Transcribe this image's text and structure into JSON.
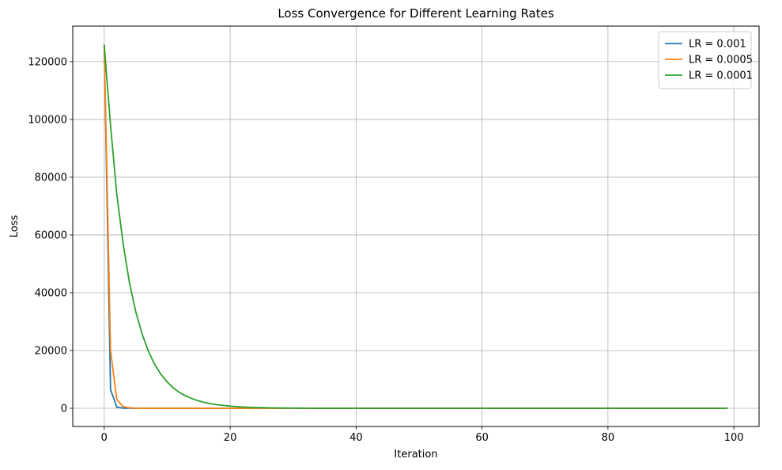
{
  "chart_data": {
    "type": "line",
    "title": "Loss Convergence for Different Learning Rates",
    "xlabel": "Iteration",
    "ylabel": "Loss",
    "xlim": [
      -5,
      104
    ],
    "ylim": [
      -6300,
      132300
    ],
    "xticks": [
      0,
      20,
      40,
      60,
      80,
      100
    ],
    "yticks": [
      0,
      20000,
      40000,
      60000,
      80000,
      100000,
      120000
    ],
    "grid": true,
    "legend_position": "top-right",
    "series": [
      {
        "name": "LR = 0.001",
        "color": "#1f77b4",
        "x": [
          0,
          1,
          2,
          3,
          4,
          5,
          99
        ],
        "y": [
          125800,
          6500,
          400,
          50,
          10,
          0,
          0
        ]
      },
      {
        "name": "LR = 0.0005",
        "color": "#ff7f0e",
        "x": [
          0,
          1,
          2,
          3,
          4,
          5,
          6,
          99
        ],
        "y": [
          125800,
          20000,
          3000,
          600,
          150,
          40,
          0,
          0
        ]
      },
      {
        "name": "LR = 0.0001",
        "color": "#2ca02c",
        "x": [
          0,
          1,
          2,
          3,
          4,
          5,
          6,
          7,
          8,
          9,
          10,
          11,
          12,
          13,
          14,
          15,
          16,
          17,
          18,
          19,
          20,
          21,
          22,
          23,
          24,
          25,
          26,
          27,
          28,
          29,
          30,
          32,
          35,
          40,
          50,
          60,
          70,
          80,
          90,
          99
        ],
        "y": [
          125800,
          98000,
          74000,
          57000,
          43500,
          33500,
          25800,
          19800,
          15200,
          11800,
          9100,
          7000,
          5400,
          4200,
          3300,
          2550,
          2000,
          1550,
          1200,
          950,
          750,
          580,
          450,
          350,
          280,
          220,
          170,
          130,
          100,
          80,
          60,
          40,
          20,
          0,
          0,
          0,
          0,
          0,
          0,
          0
        ]
      }
    ]
  }
}
